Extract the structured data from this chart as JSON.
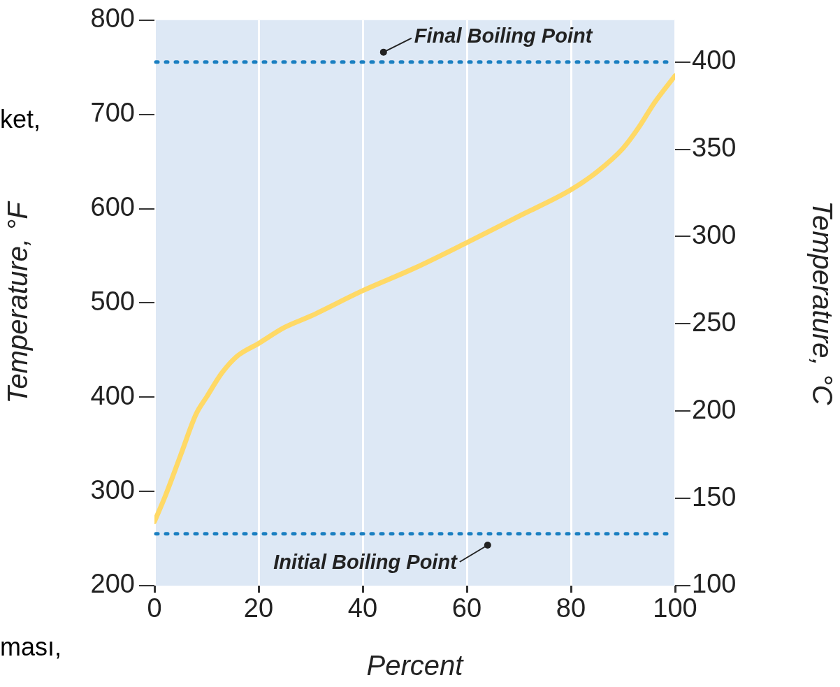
{
  "chart_data": {
    "type": "line",
    "xlabel": "Percent",
    "ylabel": "Temperature, °F",
    "y2label": "Temperature, °C",
    "x": [
      0,
      2,
      5,
      8,
      10,
      13,
      16,
      20,
      25,
      30,
      40,
      50,
      60,
      70,
      80,
      85,
      90,
      93,
      96,
      100
    ],
    "series": [
      {
        "color": "#ffd966",
        "values": [
          268,
          294,
          338,
          382,
          400,
          426,
          444,
          457,
          474,
          486,
          513,
          537,
          564,
          592,
          620,
          639,
          664,
          686,
          712,
          741
        ]
      }
    ],
    "xlim": [
      0,
      100
    ],
    "xticks": [
      0,
      20,
      40,
      60,
      80,
      100
    ],
    "ylim": [
      200,
      800
    ],
    "yticks": [
      200,
      300,
      400,
      500,
      600,
      700,
      800
    ],
    "y2lim": [
      100,
      424
    ],
    "y2ticks": [
      100,
      150,
      200,
      250,
      300,
      350,
      400
    ],
    "ref_lines": [
      {
        "axis": "y2",
        "value": 400,
        "color": "#1a7fc1",
        "line_style": "dotted"
      },
      {
        "axis": "y",
        "value": 255,
        "color": "#1a7fc1",
        "line_style": "dotted"
      }
    ],
    "annotations": [
      {
        "text": "Final Boiling Point",
        "x": 44,
        "y": 766
      },
      {
        "text": "Initial Boiling Point",
        "x": 64,
        "y": 243
      },
      "ket,",
      "ması,"
    ],
    "grid": "x",
    "legend": false,
    "marker": "none",
    "line_style": "solid"
  }
}
